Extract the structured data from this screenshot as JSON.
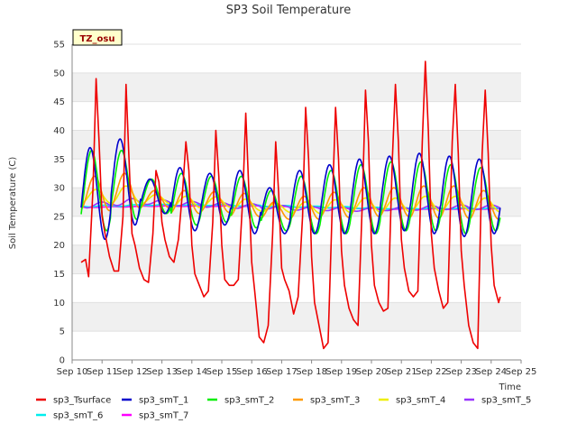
{
  "chart_data": {
    "type": "line",
    "title": "SP3 Soil Temperature",
    "xlabel": "Time",
    "ylabel": "Soil Temperature (C)",
    "site_label": "TZ_osu",
    "ylim": [
      0,
      55
    ],
    "xlim": [
      10,
      25
    ],
    "yticks": [
      0,
      5,
      10,
      15,
      20,
      25,
      30,
      35,
      40,
      45,
      50,
      55
    ],
    "xticks": [
      {
        "value": 10,
        "label": "Sep 10"
      },
      {
        "value": 11,
        "label": "Sep 11"
      },
      {
        "value": 12,
        "label": "Sep 12"
      },
      {
        "value": 13,
        "label": "Sep 13"
      },
      {
        "value": 14,
        "label": "Sep 14"
      },
      {
        "value": 15,
        "label": "Sep 15"
      },
      {
        "value": 16,
        "label": "Sep 16"
      },
      {
        "value": 17,
        "label": "Sep 17"
      },
      {
        "value": 18,
        "label": "Sep 18"
      },
      {
        "value": 19,
        "label": "Sep 19"
      },
      {
        "value": 20,
        "label": "Sep 20"
      },
      {
        "value": 21,
        "label": "Sep 21"
      },
      {
        "value": 22,
        "label": "Sep 22"
      },
      {
        "value": 23,
        "label": "Sep 23"
      },
      {
        "value": 24,
        "label": "Sep 24"
      },
      {
        "value": 25,
        "label": "Sep 25"
      }
    ],
    "grid": "horizontal alternating bands",
    "legend_position": "bottom",
    "series": [
      {
        "name": "sp3_Tsurface",
        "color": "#ee0000",
        "x": [
          10.3,
          10.45,
          10.55,
          10.7,
          10.8,
          10.9,
          11.0,
          11.1,
          11.25,
          11.4,
          11.55,
          11.7,
          11.8,
          11.9,
          12.0,
          12.1,
          12.25,
          12.4,
          12.55,
          12.7,
          12.8,
          12.9,
          13.0,
          13.1,
          13.25,
          13.4,
          13.55,
          13.7,
          13.8,
          13.9,
          14.0,
          14.1,
          14.25,
          14.4,
          14.55,
          14.7,
          14.8,
          14.9,
          15.0,
          15.1,
          15.25,
          15.4,
          15.55,
          15.7,
          15.8,
          15.9,
          16.0,
          16.1,
          16.25,
          16.4,
          16.55,
          16.7,
          16.8,
          16.9,
          17.0,
          17.1,
          17.25,
          17.4,
          17.55,
          17.7,
          17.8,
          17.9,
          18.0,
          18.1,
          18.25,
          18.4,
          18.55,
          18.7,
          18.8,
          18.9,
          19.0,
          19.1,
          19.25,
          19.4,
          19.55,
          19.7,
          19.8,
          19.9,
          20.0,
          20.1,
          20.25,
          20.4,
          20.55,
          20.7,
          20.8,
          20.9,
          21.0,
          21.1,
          21.25,
          21.4,
          21.55,
          21.7,
          21.8,
          21.9,
          22.0,
          22.1,
          22.25,
          22.4,
          22.55,
          22.7,
          22.8,
          22.9,
          23.0,
          23.1,
          23.25,
          23.4,
          23.55,
          23.7,
          23.8,
          23.9,
          24.0,
          24.1,
          24.25,
          24.3
        ],
        "y": [
          17,
          17.5,
          14.5,
          30,
          49,
          38,
          25,
          22,
          18,
          15.5,
          15.5,
          25,
          48,
          35,
          22,
          20,
          16,
          14,
          13.5,
          22,
          33,
          31,
          24,
          21,
          18,
          17,
          21,
          30,
          38,
          33,
          20,
          15,
          13,
          11,
          12,
          24,
          40,
          32,
          20,
          14,
          13,
          13,
          14,
          28,
          43,
          30,
          17,
          12,
          4,
          3,
          6,
          22,
          38,
          29,
          16,
          14,
          12,
          8,
          11,
          25,
          44,
          35,
          18,
          10,
          6,
          2,
          3,
          28,
          44,
          35,
          19,
          13,
          9,
          7,
          6,
          28,
          47,
          38,
          20,
          13,
          10,
          8.5,
          9,
          35,
          48,
          38,
          21,
          16,
          12,
          11,
          12,
          38,
          52,
          40,
          22,
          16,
          12,
          9,
          10,
          38,
          48,
          36,
          19,
          13,
          6,
          3,
          2,
          36,
          47,
          36,
          20,
          13,
          10,
          11
        ]
      },
      {
        "name": "sp3_smT_1",
        "color": "#0000cc",
        "x0": 10.3,
        "x1": 24.3,
        "n": 14,
        "phase": 0.9,
        "means": [
          29,
          31,
          28.5,
          28,
          28,
          27.5,
          26,
          27.5,
          28,
          28.5,
          29,
          29,
          28.5,
          28.5
        ],
        "amps": [
          8,
          7.5,
          3,
          5.5,
          4.5,
          5.5,
          4,
          5.5,
          6,
          6.5,
          6.5,
          7,
          7,
          6.5
        ]
      },
      {
        "name": "sp3_smT_2",
        "color": "#00ee00",
        "x0": 10.3,
        "x1": 24.3,
        "n": 14,
        "phase": 0.95,
        "means": [
          29.5,
          30.5,
          28.5,
          28,
          28,
          27.5,
          26,
          27,
          27.5,
          28,
          28.5,
          28.5,
          28,
          28
        ],
        "amps": [
          7,
          6,
          3,
          4.5,
          4,
          4.5,
          3.5,
          5,
          5.5,
          6,
          6,
          6,
          6,
          5.5
        ]
      },
      {
        "name": "sp3_smT_3",
        "color": "#ff9900",
        "x0": 10.3,
        "x1": 24.3,
        "n": 14,
        "phase": 1.05,
        "means": [
          29,
          29.5,
          28,
          27.5,
          27.5,
          27,
          26,
          26.5,
          27,
          27.5,
          27.5,
          27.5,
          27.5,
          27
        ],
        "amps": [
          3,
          3,
          1.5,
          2,
          1.8,
          2,
          1.5,
          2,
          2.2,
          2.5,
          2.5,
          2.8,
          2.8,
          2.5
        ]
      },
      {
        "name": "sp3_smT_4",
        "color": "#eeee00",
        "x0": 10.3,
        "x1": 24.3,
        "n": 14,
        "phase": 1.1,
        "means": [
          28.5,
          28.8,
          28,
          27.5,
          27.5,
          27,
          26.5,
          26.5,
          26.8,
          27,
          27,
          27.2,
          27.2,
          27
        ],
        "amps": [
          1.2,
          1.5,
          0.8,
          1,
          0.9,
          1,
          0.8,
          1,
          1.1,
          1.2,
          1.2,
          1.3,
          1.3,
          1.2
        ]
      },
      {
        "name": "sp3_smT_5",
        "color": "#9933ff",
        "x0": 10.3,
        "x1": 24.3,
        "n": 14,
        "phase": 1.3,
        "means": [
          27,
          27.5,
          27.5,
          27.2,
          27,
          26.8,
          26.6,
          26.4,
          26.3,
          26.2,
          26.3,
          26.5,
          26.6,
          26.6
        ],
        "amps": [
          0.5,
          0.6,
          0.4,
          0.4,
          0.4,
          0.4,
          0.3,
          0.3,
          0.3,
          0.3,
          0.3,
          0.4,
          0.4,
          0.4
        ]
      },
      {
        "name": "sp3_smT_6",
        "color": "#00eeee",
        "x0": 10.3,
        "x1": 24.3,
        "n": 14,
        "phase": 1.4,
        "means": [
          26.8,
          26.9,
          27,
          27,
          27,
          26.9,
          26.8,
          26.7,
          26.6,
          26.5,
          26.4,
          26.4,
          26.4,
          26.4
        ],
        "amps": [
          0.15,
          0.15,
          0.1,
          0.1,
          0.1,
          0.1,
          0.1,
          0.1,
          0.1,
          0.1,
          0.1,
          0.1,
          0.1,
          0.1
        ]
      },
      {
        "name": "sp3_smT_7",
        "color": "#ff00ff",
        "x0": 10.3,
        "x1": 24.3,
        "n": 14,
        "phase": 1.5,
        "means": [
          26.6,
          26.7,
          26.8,
          26.8,
          26.8,
          26.8,
          26.7,
          26.6,
          26.5,
          26.4,
          26.3,
          26.3,
          26.3,
          26.3
        ],
        "amps": [
          0.05,
          0.05,
          0.05,
          0.05,
          0.05,
          0.05,
          0.05,
          0.05,
          0.05,
          0.05,
          0.05,
          0.05,
          0.05,
          0.05
        ]
      }
    ]
  }
}
